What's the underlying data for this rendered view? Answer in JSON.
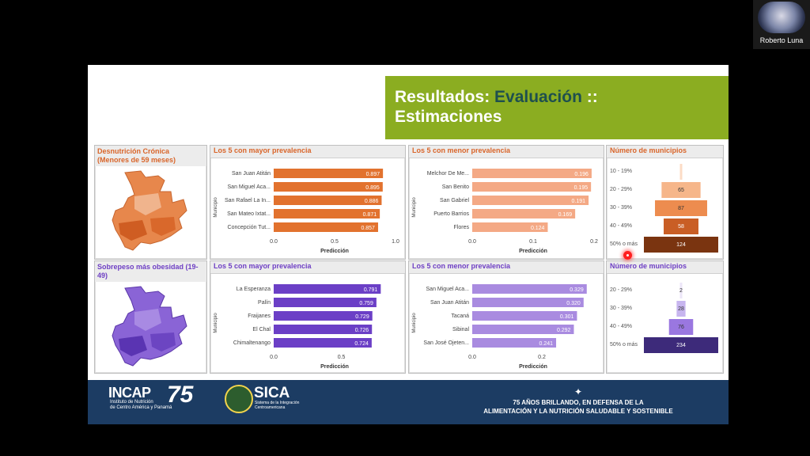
{
  "participant": {
    "name": "Roberto Luna"
  },
  "slide": {
    "title_prefix": "Resultados: ",
    "title_accent": "Evaluación",
    "title_suffix": " ::",
    "title_line2": "Estimaciones"
  },
  "colors": {
    "orange_dark": "#e2722e",
    "orange_light": "#f4a985",
    "purple_dark": "#6b3fc6",
    "purple_light": "#a98be0",
    "olive": "#8bad21",
    "footer": "#1c3c63"
  },
  "row1": {
    "map_title": "Desnutrición Crónica (Menores de 59 meses)",
    "top_title": "Los 5 con mayor prevalencia",
    "bottom_title": "Los 5 con menor prevalencia",
    "funnel_title": "Número de municipios"
  },
  "row2": {
    "map_title": "Sobrepeso más obesidad (19-49)",
    "top_title": "Los 5 con mayor prevalencia",
    "bottom_title": "Los 5 con menor prevalencia",
    "funnel_title": "Número de municipios"
  },
  "footer": {
    "incap": "INCAP",
    "incap_sub1": "Instituto de Nutrición",
    "incap_sub2": "de Centro América y Panamá",
    "incap_75": "75",
    "sica": "SICA",
    "sica_sub1": "Sistema de la Integración",
    "sica_sub2": "Centroamericana",
    "slogan1": "75 AÑOS BRILLANDO, EN DEFENSA DE LA",
    "slogan2": "ALIMENTACIÓN Y LA NUTRICIÓN SALUDABLE Y SOSTENIBLE"
  },
  "chart_data": [
    {
      "type": "bar",
      "id": "c1",
      "ylabel": "Municipio",
      "xlabel": "Predicción",
      "color": "#e2722e",
      "categories": [
        "San Juan Atitán",
        "San Miguel Aca...",
        "San Rafael La In...",
        "San Mateo Ixtat...",
        "Concepción Tut..."
      ],
      "values": [
        0.897,
        0.895,
        0.886,
        0.871,
        0.857
      ],
      "labels": [
        "0.897",
        "0.895",
        "0.886",
        "0.871",
        "0.857"
      ],
      "xlim": [
        0,
        1.0
      ],
      "ticks": [
        0,
        0.5,
        1.0
      ],
      "tick_labels": [
        "0.0",
        "0.5",
        "1.0"
      ]
    },
    {
      "type": "bar",
      "id": "c2",
      "ylabel": "Municipio",
      "xlabel": "Predicción",
      "color": "#f4a985",
      "categories": [
        "Melchor De Me...",
        "San Benito",
        "San Gabriel",
        "Puerto Barrios",
        "Flores"
      ],
      "values": [
        0.196,
        0.195,
        0.191,
        0.169,
        0.124
      ],
      "labels": [
        "0.196",
        "0.195",
        "0.191",
        "0.169",
        "0.124"
      ],
      "xlim": [
        0,
        0.2
      ],
      "ticks": [
        0,
        0.1,
        0.2
      ],
      "tick_labels": [
        "0.0",
        "0.1",
        "0.2"
      ]
    },
    {
      "type": "bar",
      "id": "c3",
      "ylabel": "Municipio",
      "xlabel": "Predicción",
      "color": "#6b3fc6",
      "categories": [
        "La Esperanza",
        "Palín",
        "Fraijanes",
        "El Chal",
        "Chimaltenango"
      ],
      "values": [
        0.791,
        0.759,
        0.729,
        0.726,
        0.724
      ],
      "labels": [
        "0.791",
        "0.759",
        "0.729",
        "0.726",
        "0.724"
      ],
      "xlim": [
        0,
        0.9
      ],
      "ticks": [
        0,
        0.5
      ],
      "tick_labels": [
        "0.0",
        "0.5"
      ]
    },
    {
      "type": "bar",
      "id": "c4",
      "ylabel": "Municipio",
      "xlabel": "Predicción",
      "color": "#a98be0",
      "categories": [
        "San Miguel Aca...",
        "San Juan Atitán",
        "Tacaná",
        "Sibinal",
        "San José Ojeten..."
      ],
      "values": [
        0.329,
        0.32,
        0.301,
        0.292,
        0.241
      ],
      "labels": [
        "0.329",
        "0.320",
        "0.301",
        "0.292",
        "0.241"
      ],
      "xlim": [
        0,
        0.35
      ],
      "ticks": [
        0,
        0.2
      ],
      "tick_labels": [
        "0.0",
        "0.2"
      ]
    },
    {
      "type": "bar",
      "id": "f1",
      "subtype": "funnel",
      "categories": [
        "10 - 19%",
        "20 - 29%",
        "30 - 39%",
        "40 - 49%",
        "50% o más"
      ],
      "values": [
        2,
        65,
        87,
        58,
        124
      ],
      "labels": [
        "",
        "65",
        "87",
        "58",
        "124"
      ],
      "colors": [
        "#fcdcc6",
        "#f6b68a",
        "#ed8c4f",
        "#c95e25",
        "#7a3410"
      ]
    },
    {
      "type": "bar",
      "id": "f2",
      "subtype": "funnel",
      "categories": [
        "20 - 29%",
        "30 - 39%",
        "40 - 49%",
        "50% o más"
      ],
      "values": [
        2,
        28,
        76,
        234
      ],
      "labels": [
        "2",
        "28",
        "76",
        "234"
      ],
      "colors": [
        "#ece6f8",
        "#c7b5ef",
        "#9a77e0",
        "#3d2a7a"
      ]
    }
  ]
}
